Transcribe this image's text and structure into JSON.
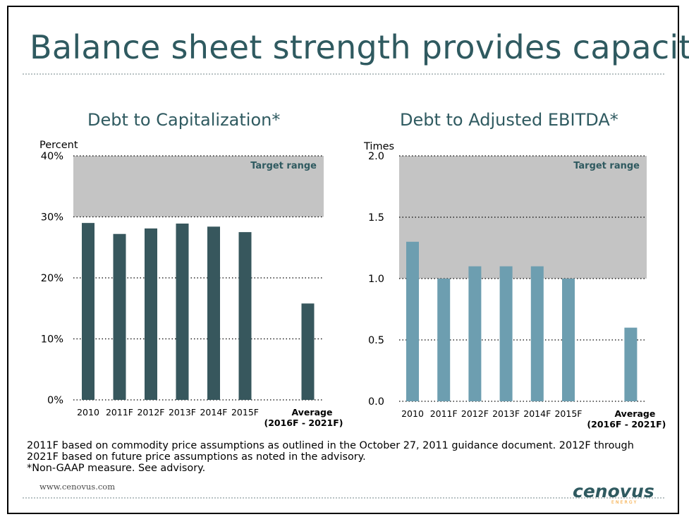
{
  "slide": {
    "title": "Balance sheet strength provides capacity",
    "footnote_lines": [
      "2011F based on commodity price assumptions as outlined in the October 27, 2011 guidance document. 2012F through",
      "2021F based on future price assumptions as noted in the advisory.",
      "*Non-GAAP measure. See advisory."
    ],
    "url": "www.cenovus.com",
    "logo_text": "cenovus",
    "logo_sub": "ENERGY"
  },
  "colors": {
    "title": "#2f5a60",
    "bar_left": "#37575d",
    "bar_right": "#6d9eb0",
    "target_band": "#c4c4c4",
    "target_text": "#2f5a60",
    "logo_orange": "#f39a1f"
  },
  "chart_data": [
    {
      "type": "bar",
      "title": "Debt to Capitalization*",
      "ylabel": "Percent",
      "ylim": [
        0,
        40
      ],
      "yticks": [
        0,
        10,
        20,
        30,
        40
      ],
      "ytick_labels": [
        "0%",
        "10%",
        "20%",
        "30%",
        "40%"
      ],
      "categories": [
        "2010",
        "2011F",
        "2012F",
        "2013F",
        "2014F",
        "2015F",
        "",
        "Average"
      ],
      "category_sublabel": "(2016F - 2021F)",
      "values": [
        29,
        27.2,
        28.1,
        28.9,
        28.4,
        27.5,
        null,
        15.8
      ],
      "target_range": {
        "label": "Target range",
        "from": 30,
        "to": 40
      },
      "grid": "dotted horizontal"
    },
    {
      "type": "bar",
      "title": "Debt to Adjusted EBITDA*",
      "ylabel": "Times",
      "ylim": [
        0,
        2.0
      ],
      "yticks": [
        0,
        0.5,
        1.0,
        1.5,
        2.0
      ],
      "ytick_labels": [
        "0.0",
        "0.5",
        "1.0",
        "1.5",
        "2.0"
      ],
      "categories": [
        "2010",
        "2011F",
        "2012F",
        "2013F",
        "2014F",
        "2015F",
        "",
        "Average"
      ],
      "category_sublabel": "(2016F - 2021F)",
      "values": [
        1.3,
        1.0,
        1.1,
        1.1,
        1.1,
        1.0,
        null,
        0.6
      ],
      "target_range": {
        "label": "Target range",
        "from": 1.0,
        "to": 2.0
      },
      "grid": "dotted horizontal"
    }
  ]
}
